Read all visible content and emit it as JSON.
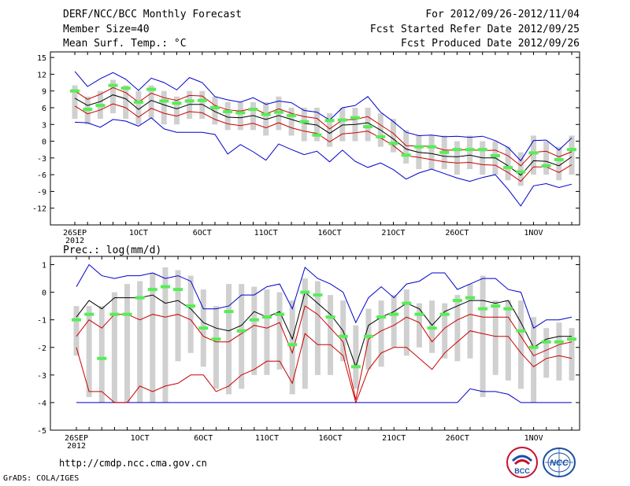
{
  "header": {
    "title": "DERF/NCC/BCC Monthly Forecast",
    "member_size": "Member Size=40",
    "variable": "Mean Surf. Temp.: °C",
    "fcst_for": "For 2012/09/26-2012/11/04",
    "fcst_started": "Fcst Started Refer Date 2012/09/25",
    "fcst_produced": "Fcst Produced Date 2012/09/26"
  },
  "footer": {
    "url": "http://cmdp.ncc.cma.gov.cn",
    "grads": "GrADS: COLA/IGES",
    "logo_bcc": "BCC",
    "logo_ncc": "NCC"
  },
  "colors": {
    "box": "#d0d0d0",
    "ensemble_max_min": "#0000cc",
    "percentile": "#cc0000",
    "mean": "#000000",
    "member_marker": "#55ee55"
  },
  "chart_data": [
    {
      "type": "line",
      "title": "Mean Surf. Temp.: °C",
      "ylim": [
        -15,
        16
      ],
      "yticks": [
        15,
        12,
        9,
        6,
        3,
        0,
        -3,
        -6,
        -9,
        -12
      ],
      "x": [
        0,
        1,
        2,
        3,
        4,
        5,
        6,
        7,
        8,
        9,
        10,
        11,
        12,
        13,
        14,
        15,
        16,
        17,
        18,
        19,
        20,
        21,
        22,
        23,
        24,
        25,
        26,
        27,
        28,
        29,
        30,
        31,
        32,
        33,
        34,
        35,
        36,
        37,
        38,
        39
      ],
      "xtick_labels": [
        {
          "i": 0,
          "label": "26SEP",
          "sub": "2012"
        },
        {
          "i": 5,
          "label": "1OCT"
        },
        {
          "i": 10,
          "label": "6OCT"
        },
        {
          "i": 15,
          "label": "11OCT"
        },
        {
          "i": 20,
          "label": "16OCT"
        },
        {
          "i": 25,
          "label": "21OCT"
        },
        {
          "i": 30,
          "label": "26OCT"
        },
        {
          "i": 36,
          "label": "1NOV"
        }
      ],
      "series": [
        {
          "name": "box_top",
          "values": [
            10,
            8,
            9,
            11,
            10,
            9,
            10,
            9,
            8,
            9,
            9,
            8,
            7,
            7,
            7,
            7,
            8,
            6,
            6,
            6,
            5,
            6,
            6,
            6,
            5,
            4,
            2,
            1,
            1,
            1,
            0,
            1,
            0,
            0,
            -1,
            -2,
            1,
            0,
            -1,
            1
          ]
        },
        {
          "name": "box_bottom",
          "values": [
            4,
            3,
            4,
            5,
            4,
            3,
            4,
            3,
            3,
            4,
            4,
            3,
            2,
            2,
            2,
            1,
            2,
            1,
            0,
            0,
            -1,
            0,
            0,
            0,
            -1,
            -2,
            -4,
            -5,
            -5,
            -5,
            -6,
            -5,
            -6,
            -6,
            -7,
            -8,
            -6,
            -6,
            -7,
            -6
          ]
        },
        {
          "name": "max",
          "values": [
            12.5,
            9.8,
            11.2,
            12.3,
            11.1,
            9.1,
            11.3,
            10.5,
            9.2,
            11.4,
            10.5,
            8.0,
            7.4,
            7.0,
            7.8,
            6.6,
            7.2,
            6.9,
            5.5,
            5.2,
            3.8,
            6.0,
            6.4,
            8.0,
            5.2,
            3.5,
            1.6,
            1.0,
            1.1,
            0.8,
            0.9,
            0.7,
            0.9,
            0.1,
            -1.1,
            -3.5,
            0.1,
            0.2,
            -1.6,
            0.6
          ]
        },
        {
          "name": "p_upper",
          "values": [
            9.0,
            7.5,
            8.4,
            9.6,
            8.7,
            7.0,
            8.6,
            7.8,
            7.3,
            8.2,
            8.1,
            6.4,
            5.6,
            5.4,
            5.9,
            4.9,
            5.8,
            5.0,
            4.4,
            4.1,
            2.2,
            3.8,
            3.9,
            4.4,
            2.9,
            1.4,
            -0.8,
            -0.9,
            -0.9,
            -1.6,
            -1.6,
            -1.5,
            -1.7,
            -1.6,
            -2.6,
            -4.4,
            -2.0,
            -1.8,
            -2.8,
            -1.9
          ]
        },
        {
          "name": "mean",
          "values": [
            7.7,
            6.4,
            7.1,
            8.3,
            7.6,
            5.7,
            7.3,
            6.5,
            5.8,
            6.6,
            6.6,
            5.3,
            4.3,
            4.2,
            4.6,
            3.9,
            4.6,
            3.9,
            3.2,
            2.9,
            1.4,
            2.9,
            3.0,
            3.3,
            2.0,
            0.4,
            -1.4,
            -2.0,
            -2.2,
            -2.7,
            -2.8,
            -2.5,
            -3.0,
            -3.0,
            -4.4,
            -6.1,
            -3.5,
            -3.6,
            -4.4,
            -2.8
          ]
        },
        {
          "name": "p_lower",
          "values": [
            6.3,
            4.9,
            5.6,
            6.7,
            6.0,
            4.3,
            5.9,
            5.0,
            4.5,
            5.3,
            5.1,
            3.9,
            3.1,
            2.8,
            3.2,
            2.4,
            3.3,
            2.4,
            1.8,
            1.4,
            -0.1,
            1.3,
            1.5,
            1.8,
            0.6,
            -0.8,
            -2.6,
            -2.9,
            -3.3,
            -3.7,
            -3.9,
            -3.8,
            -4.2,
            -4.3,
            -5.6,
            -7.2,
            -4.6,
            -4.6,
            -5.6,
            -4.2
          ]
        },
        {
          "name": "min",
          "values": [
            3.4,
            3.3,
            2.5,
            3.9,
            3.6,
            2.7,
            4.2,
            2.2,
            1.6,
            1.6,
            1.6,
            1.2,
            -2.3,
            -0.6,
            -1.9,
            -3.4,
            -0.5,
            -1.5,
            -2.4,
            -1.8,
            -3.7,
            -1.6,
            -3.6,
            -4.7,
            -3.9,
            -5.1,
            -6.8,
            -5.7,
            -5.0,
            -5.8,
            -6.6,
            -7.2,
            -6.5,
            -6.0,
            -8.6,
            -11.6,
            -8.0,
            -7.6,
            -8.3,
            -7.7
          ]
        },
        {
          "name": "member_marker",
          "values": [
            9.0,
            5.7,
            6.4,
            10.0,
            9.5,
            7.0,
            9.3,
            7.2,
            6.8,
            7.2,
            7.3,
            6.0,
            5.3,
            5.1,
            5.7,
            4.8,
            5.2,
            4.6,
            3.5,
            1.1,
            3.7,
            3.8,
            4.2,
            2.6,
            0.8,
            -0.4,
            -2.5,
            -1.0,
            -1.0,
            -2.0,
            -1.5,
            -1.5,
            -1.5,
            -2.6,
            -4.7,
            -5.5,
            -2.1,
            -4.4,
            -3.3,
            -1.5
          ]
        }
      ]
    },
    {
      "type": "line",
      "title": "Prec.: log(mm/d)",
      "ylim": [
        -5,
        1.3
      ],
      "yticks": [
        1,
        0,
        -1,
        -2,
        -3,
        -4,
        -5
      ],
      "x": [
        0,
        1,
        2,
        3,
        4,
        5,
        6,
        7,
        8,
        9,
        10,
        11,
        12,
        13,
        14,
        15,
        16,
        17,
        18,
        19,
        20,
        21,
        22,
        23,
        24,
        25,
        26,
        27,
        28,
        29,
        30,
        31,
        32,
        33,
        34,
        35,
        36,
        37,
        38,
        39
      ],
      "xtick_labels": [
        {
          "i": 0,
          "label": "26SEP",
          "sub": "2012"
        },
        {
          "i": 5,
          "label": "1OCT"
        },
        {
          "i": 10,
          "label": "6OCT"
        },
        {
          "i": 15,
          "label": "11OCT"
        },
        {
          "i": 20,
          "label": "16OCT"
        },
        {
          "i": 25,
          "label": "21OCT"
        },
        {
          "i": 30,
          "label": "26OCT"
        },
        {
          "i": 36,
          "label": "1NOV"
        }
      ],
      "series": [
        {
          "name": "box_top",
          "values": [
            -0.5,
            -0.5,
            -0.5,
            0.0,
            0.3,
            0.4,
            0.7,
            0.9,
            0.8,
            0.6,
            0.1,
            -0.5,
            0.3,
            0.3,
            0.2,
            0.1,
            0.0,
            -0.3,
            0.5,
            0.4,
            -0.1,
            -0.3,
            -1.2,
            -0.6,
            -0.3,
            -0.1,
            0.1,
            -0.4,
            -0.3,
            -0.4,
            -0.1,
            0.3,
            0.6,
            -0.3,
            -0.3,
            -0.3,
            -0.9,
            -1.3,
            -1.1,
            -1.3
          ]
        },
        {
          "name": "box_bottom",
          "values": [
            -2.3,
            -3.8,
            -4.0,
            -4.0,
            -4.0,
            -4.0,
            -4.0,
            -4.0,
            -2.5,
            -2.2,
            -2.7,
            -3.5,
            -3.7,
            -3.5,
            -3.0,
            -3.0,
            -2.8,
            -3.7,
            -3.5,
            -3.0,
            -3.0,
            -2.5,
            -3.5,
            -2.8,
            -2.7,
            -2.0,
            -2.3,
            -2.0,
            -2.2,
            -2.4,
            -2.5,
            -2.4,
            -3.8,
            -3.0,
            -3.2,
            -3.5,
            -4.0,
            -3.1,
            -3.2,
            -3.2
          ]
        },
        {
          "name": "max",
          "values": [
            0.2,
            1.0,
            0.6,
            0.5,
            0.6,
            0.6,
            0.7,
            0.5,
            0.6,
            0.4,
            -0.6,
            -0.6,
            -0.5,
            -0.1,
            -0.1,
            0.2,
            0.3,
            -0.6,
            0.9,
            0.5,
            0.3,
            0.0,
            -1.1,
            -0.2,
            0.2,
            -0.2,
            0.3,
            0.4,
            0.7,
            0.7,
            0.1,
            0.3,
            0.5,
            0.5,
            0.1,
            0.0,
            -1.3,
            -1.0,
            -1.0,
            -0.9
          ]
        },
        {
          "name": "mean",
          "values": [
            -0.9,
            -0.3,
            -0.6,
            -0.2,
            -0.2,
            -0.2,
            -0.1,
            -0.4,
            -0.3,
            -0.6,
            -1.1,
            -1.3,
            -1.4,
            -1.2,
            -0.7,
            -0.9,
            -0.7,
            -1.7,
            0.0,
            -0.4,
            -0.8,
            -1.4,
            -2.7,
            -1.2,
            -0.9,
            -0.7,
            -0.4,
            -0.6,
            -1.2,
            -0.7,
            -0.5,
            -0.3,
            -0.3,
            -0.4,
            -0.3,
            -1.1,
            -2.0,
            -1.7,
            -1.6,
            -1.6
          ]
        },
        {
          "name": "p_upper",
          "values": [
            -1.6,
            -1.0,
            -1.3,
            -0.8,
            -0.8,
            -1.0,
            -0.8,
            -0.9,
            -0.8,
            -1.0,
            -1.6,
            -1.8,
            -1.8,
            -1.5,
            -1.2,
            -1.3,
            -1.1,
            -2.2,
            -0.5,
            -0.8,
            -1.3,
            -1.8,
            -3.9,
            -1.7,
            -1.4,
            -1.2,
            -0.9,
            -1.1,
            -1.8,
            -1.3,
            -1.0,
            -0.8,
            -0.9,
            -0.9,
            -0.9,
            -1.6,
            -2.3,
            -2.1,
            -1.9,
            -1.8
          ]
        },
        {
          "name": "p_lower",
          "values": [
            -2.0,
            -3.6,
            -3.6,
            -4.0,
            -4.0,
            -3.4,
            -3.6,
            -3.4,
            -3.3,
            -3.0,
            -3.0,
            -3.6,
            -3.4,
            -3.0,
            -2.8,
            -2.5,
            -2.5,
            -3.3,
            -1.5,
            -1.9,
            -1.9,
            -2.3,
            -4.0,
            -2.8,
            -2.2,
            -2.0,
            -2.0,
            -2.4,
            -2.8,
            -2.2,
            -1.8,
            -1.4,
            -1.5,
            -1.6,
            -1.6,
            -2.2,
            -2.7,
            -2.4,
            -2.3,
            -2.4
          ]
        },
        {
          "name": "min",
          "values": [
            -4.0,
            -4.0,
            -4.0,
            -4.0,
            -4.0,
            -4.0,
            -4.0,
            -4.0,
            -4.0,
            -4.0,
            -4.0,
            -4.0,
            -4.0,
            -4.0,
            -4.0,
            -4.0,
            -4.0,
            -4.0,
            -4.0,
            -4.0,
            -4.0,
            -4.0,
            -4.0,
            -4.0,
            -4.0,
            -4.0,
            -4.0,
            -4.0,
            -4.0,
            -4.0,
            -4.0,
            -3.5,
            -3.6,
            -3.6,
            -3.7,
            -4.0,
            -4.0,
            -4.0,
            -4.0,
            -4.0
          ]
        },
        {
          "name": "member_marker",
          "values": [
            -1.0,
            -0.8,
            -2.4,
            -0.8,
            -0.8,
            -0.2,
            0.1,
            0.2,
            0.1,
            -0.5,
            -1.3,
            -1.7,
            -0.7,
            -1.4,
            -1.0,
            -0.9,
            -0.8,
            -1.9,
            0.0,
            -0.1,
            -0.9,
            -1.6,
            -2.7,
            -1.6,
            -0.9,
            -0.8,
            -0.4,
            -0.8,
            -1.3,
            -0.8,
            -0.3,
            -0.2,
            -0.6,
            -0.5,
            -0.6,
            -1.4,
            -2.0,
            -1.8,
            -1.8,
            -1.7
          ]
        }
      ]
    }
  ]
}
